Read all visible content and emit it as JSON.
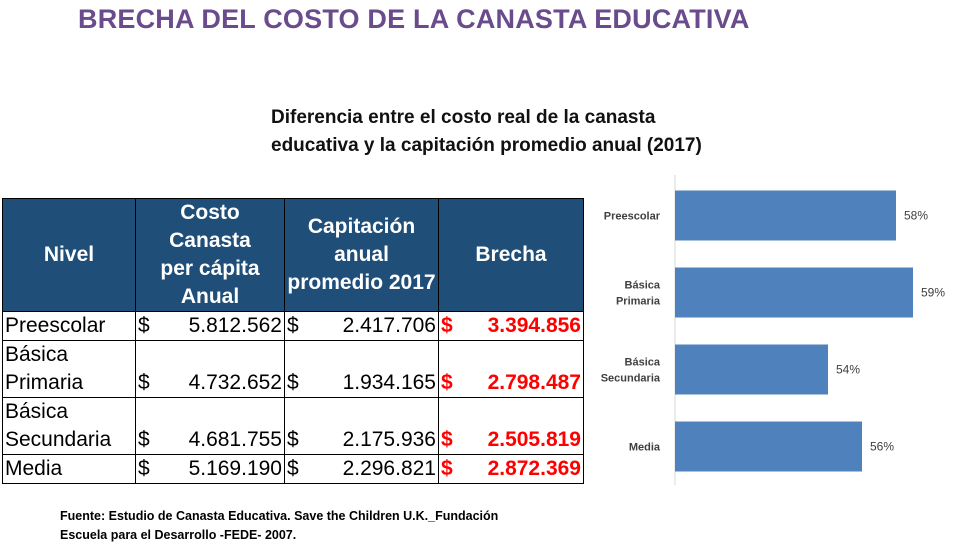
{
  "header": {
    "title": "BRECHA DEL COSTO DE LA CANASTA EDUCATIVA",
    "subtitle_line1": "Diferencia entre el costo real de la canasta",
    "subtitle_line2": "educativa y la capitación promedio anual (2017)"
  },
  "table": {
    "headers": {
      "nivel": "Nivel",
      "costo_l1": "Costo Canasta",
      "costo_l2": "per cápita",
      "costo_l3": "Anual",
      "cap_l1": "Capitación",
      "cap_l2": "anual",
      "cap_l3": "promedio 2017",
      "brecha": "Brecha"
    },
    "currency": "$",
    "rows": [
      {
        "nivel_l1": "Preescolar",
        "nivel_l2": "",
        "costo": "5.812.562",
        "capitacion": "2.417.706",
        "brecha": "3.394.856"
      },
      {
        "nivel_l1": "Básica",
        "nivel_l2": "Primaria",
        "costo": "4.732.652",
        "capitacion": "1.934.165",
        "brecha": "2.798.487"
      },
      {
        "nivel_l1": "Básica",
        "nivel_l2": "Secundaria",
        "costo": "4.681.755",
        "capitacion": "2.175.936",
        "brecha": "2.505.819"
      },
      {
        "nivel_l1": "Media",
        "nivel_l2": "",
        "costo": "5.169.190",
        "capitacion": "2.296.821",
        "brecha": "2.872.369"
      }
    ]
  },
  "source": {
    "line1": "Fuente: Estudio de Canasta Educativa. Save the Children U.K._Fundación",
    "line2": "Escuela para el Desarrollo -FEDE- 2007."
  },
  "chart_data": {
    "type": "bar",
    "orientation": "horizontal",
    "categories": [
      [
        "Preescolar"
      ],
      [
        "Básica",
        "Primaria"
      ],
      [
        "Básica",
        "Secundaria"
      ],
      [
        "Media"
      ]
    ],
    "values": [
      58,
      59,
      54,
      56
    ],
    "value_suffix": "%",
    "xlim": [
      45,
      60
    ],
    "grid": false,
    "legend": "none",
    "bar_color": "#4f81bd"
  }
}
